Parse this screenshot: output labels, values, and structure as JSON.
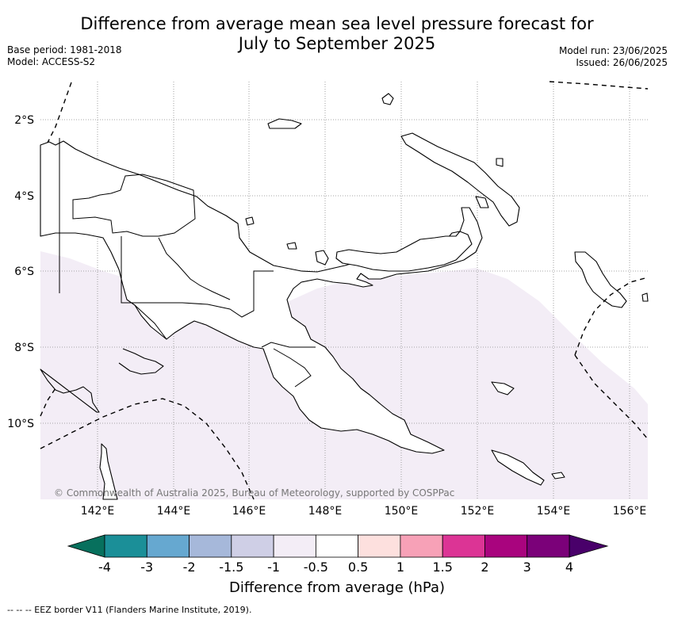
{
  "title_line1": "Difference from average mean sea level pressure forecast for",
  "title_line2": "July to September 2025",
  "meta_left": [
    "Base period: 1981-2018",
    "Model: ACCESS-S2"
  ],
  "meta_right": [
    "Model run: 23/06/2025",
    "Issued: 26/06/2025"
  ],
  "lat_labels": [
    "2°S",
    "4°S",
    "6°S",
    "8°S",
    "10°S"
  ],
  "lon_labels": [
    "142°E",
    "144°E",
    "146°E",
    "148°E",
    "150°E",
    "152°E",
    "154°E",
    "156°E"
  ],
  "copyright": "© Commonwealth of Australia 2025, Bureau of Meteorology, supported by COSPPac",
  "colorbar": {
    "title": "Difference from average (hPa)",
    "labels": [
      "-4",
      "-3",
      "-2",
      "-1.5",
      "-1",
      "-0.5",
      "0.5",
      "1",
      "1.5",
      "2",
      "3",
      "4"
    ],
    "colors": [
      "#1b8f98",
      "#66a8d0",
      "#a6b8da",
      "#cfcfe6",
      "#f3edf6",
      "#ffffff",
      "#fde0de",
      "#f7a1b7",
      "#dc3495",
      "#a9047e",
      "#7b0179"
    ],
    "under_color": "#07705d",
    "over_color": "#49006a"
  },
  "shaded_region_color": "#f3edf6",
  "footnote": "--  --  -- EEZ border V11 (Flanders Marine Institute, 2019)."
}
